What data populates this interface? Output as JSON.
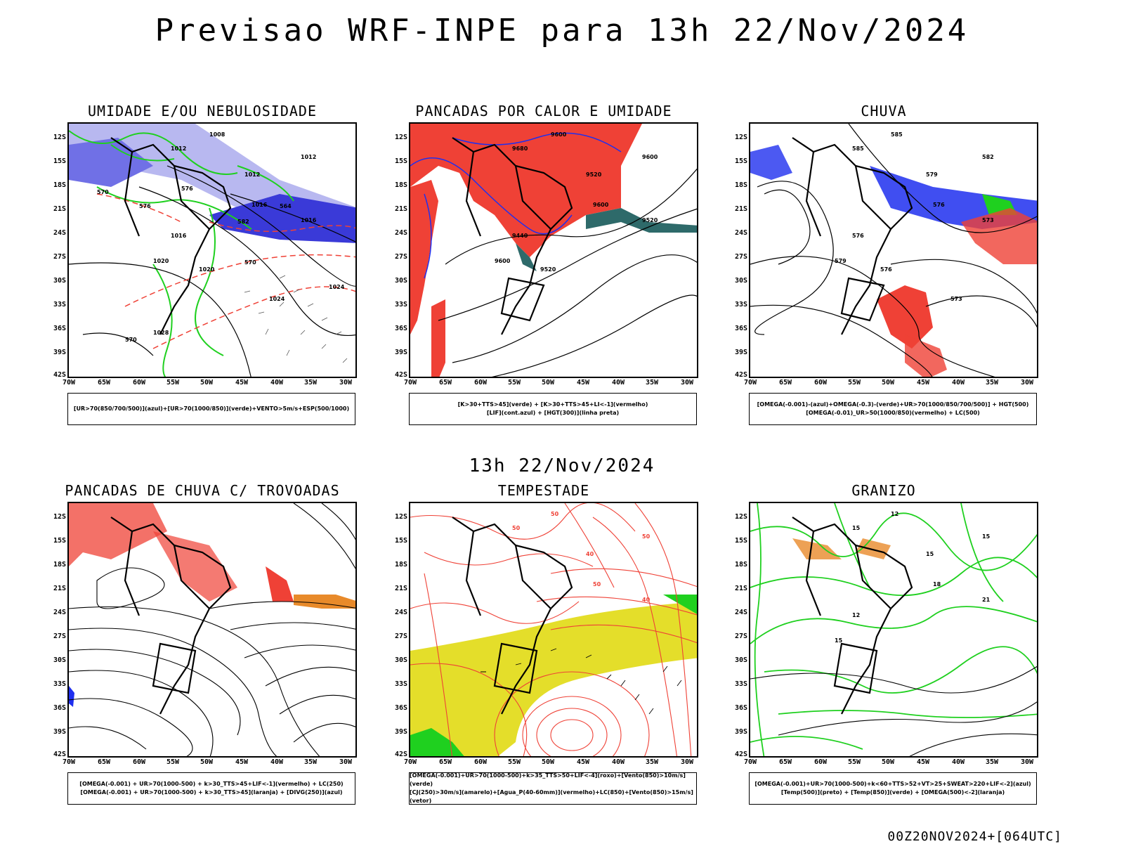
{
  "title": "Previsao WRF-INPE  para 13h 22/Nov/2024",
  "mid_title": "13h 22/Nov/2024",
  "footer": "00Z20NOV2024+[064UTC]",
  "lat_labels": [
    "12S",
    "15S",
    "18S",
    "21S",
    "24S",
    "27S",
    "30S",
    "33S",
    "36S",
    "39S",
    "42S"
  ],
  "lon_labels": [
    "70W",
    "65W",
    "60W",
    "55W",
    "50W",
    "45W",
    "40W",
    "35W",
    "30W"
  ],
  "panels": [
    {
      "id": "p1",
      "title": "UMIDADE E/OU NEBULOSIDADE",
      "legend": [
        "[UR>70(850/700/500)](azul)+[UR>70(1000/850)](verde)+VENTO>5m/s+ESP(500/1000)"
      ],
      "contour_labels": [
        "1008",
        "1012",
        "1012",
        "1012",
        "1016",
        "1016",
        "1016",
        "1020",
        "1020",
        "1024",
        "1024",
        "1028",
        "570",
        "570",
        "576",
        "576",
        "582",
        "564",
        "570"
      ]
    },
    {
      "id": "p2",
      "title": "PANCADAS POR CALOR E UMIDADE",
      "legend": [
        "[K>30+TTS>45](verde) + [K>30+TTS>45+LI<-1](vermelho)",
        "[LIF](cont.azul) + [HGT(300)](linha preta)"
      ],
      "contour_labels": [
        "9600",
        "9680",
        "9600",
        "9520",
        "9600",
        "9520",
        "9440",
        "9600",
        "9520"
      ]
    },
    {
      "id": "p3",
      "title": "CHUVA",
      "legend": [
        "[OMEGA(-0.001)-(azul)+OMEGA(-0.3)-(verde)+UR>70(1000/850/700/500)] + HGT(500)",
        "[OMEGA(-0.01)_UR>50(1000/850)(vermelho) + LC(500)"
      ],
      "contour_labels": [
        "585",
        "585",
        "582",
        "579",
        "576",
        "573",
        "576",
        "579",
        "576",
        "573"
      ]
    },
    {
      "id": "p4",
      "title": "PANCADAS DE CHUVA C/ TROVOADAS",
      "legend": [
        "[OMEGA(-0.001) + UR>70(1000-500) + k>30_TTS>45+LIF<-1](vermelho) + LC(250)",
        "[OMEGA(-0.001) + UR>70(1000-500) + k>30_TTS>45](laranja) + [DIVG(250)](azul)"
      ],
      "contour_labels": []
    },
    {
      "id": "p5",
      "title": "TEMPESTADE",
      "legend": [
        "[OMEGA(-0.001)+UR>70(1000-500)+k>35_TTS>50+LIF<-4](roxo)+[Vento(850)>10m/s](verde)",
        "[CJ(250)>30m/s](amarelo)+[Agua_P(40-60mm)](vermelho)+LC(850)+[Vento(850)>15m/s](vetor)"
      ],
      "contour_labels": [
        "50",
        "50",
        "50",
        "40",
        "50",
        "40"
      ]
    },
    {
      "id": "p6",
      "title": "GRANIZO",
      "legend": [
        "[OMEGA(-0.001)+UR>70(1000-500)+k<60+TTS>52+VT>25+SWEAT>220+LIF<-2](azul)",
        "[Temp(500)](preto) + [Temp(850)](verde) + [OMEGA(500)<-2](laranja)"
      ],
      "contour_labels": [
        "12",
        "15",
        "15",
        "15",
        "18",
        "21",
        "12",
        "15"
      ]
    }
  ],
  "colors": {
    "red": "#ef4136",
    "green": "#1fd01f",
    "blue": "#1f2fef",
    "lightblue": "#b8b8f0",
    "midblue": "#7070e6",
    "teal": "#2e6a6a",
    "yellow": "#e4de2a",
    "orange": "#e88a2a",
    "purple": "#b030c0"
  }
}
